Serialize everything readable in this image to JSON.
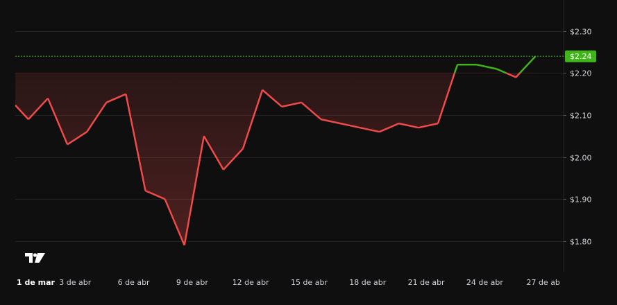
{
  "chart_data": {
    "type": "line",
    "title": "",
    "xlabel": "",
    "ylabel": "",
    "ylim": [
      1.727,
      2.374
    ],
    "y_ticks": [
      1.8,
      1.9,
      2.0,
      2.1,
      2.2,
      2.3
    ],
    "y_tick_labels": [
      "$1.80",
      "$1.90",
      "$2.00",
      "$2.10",
      "$2.20",
      "$2.30"
    ],
    "x_tick_labels": [
      "1 de mar",
      "3 de abr",
      "6 de abr",
      "9 de abr",
      "12 de abr",
      "15 de abr",
      "18 de abr",
      "21 de abr",
      "24 de abr",
      "27 de ab"
    ],
    "x_tick_positions": [
      0,
      3,
      6,
      9,
      12,
      15,
      18,
      21,
      24,
      27
    ],
    "baseline": 2.2,
    "last_value": 2.24,
    "last_value_label": "$2.24",
    "colors": {
      "below": "#f04a4a",
      "above": "#3fb519",
      "background": "#0f0f0f",
      "grid": "#232323"
    },
    "grid": true,
    "logo": "tradingview-logo",
    "series": [
      {
        "x": [
          0,
          0.6,
          1.6,
          2.6,
          3.6,
          4.6,
          5.6,
          6.6,
          7.6,
          8.6,
          9.6,
          10.6,
          11.6,
          12.6,
          13.6,
          14.6,
          15.6,
          16.6,
          17.6,
          18.6,
          19.6,
          20.6,
          21.6,
          22.6,
          23.6,
          24.6,
          25.6,
          26.6
        ],
        "values": [
          2.12,
          2.09,
          2.14,
          2.03,
          2.06,
          2.13,
          2.15,
          1.92,
          1.9,
          1.79,
          2.05,
          1.97,
          2.02,
          2.16,
          2.12,
          2.13,
          2.09,
          2.08,
          2.07,
          2.06,
          2.08,
          2.07,
          2.08,
          2.22,
          2.22,
          2.21,
          2.19,
          2.24
        ]
      }
    ]
  }
}
